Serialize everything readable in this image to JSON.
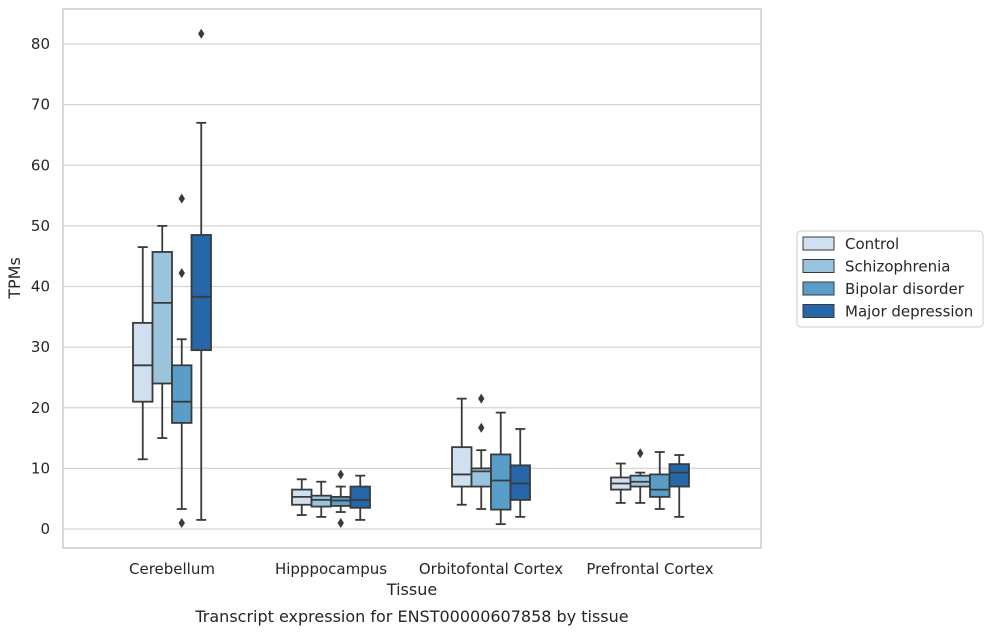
{
  "chart_data": {
    "type": "box",
    "title": "",
    "caption": "Transcript expression for ENST00000607858 by tissue",
    "xlabel": "Tissue",
    "ylabel": "TPMs",
    "ylim": [
      -3,
      86
    ],
    "yticks": [
      0,
      10,
      20,
      30,
      40,
      50,
      60,
      70,
      80
    ],
    "grid": true,
    "legend_position": "right",
    "categories": [
      "Cerebellum",
      "Hipppocampus",
      "Orbitofontal Cortex",
      "Prefrontal Cortex"
    ],
    "series": [
      {
        "name": "Control",
        "color": "#d0e0f0",
        "boxes": [
          {
            "q1": 21,
            "median": 27,
            "q3": 34,
            "whisker_low": 11.5,
            "whisker_high": 46.5,
            "outliers": []
          },
          {
            "q1": 4,
            "median": 5.3,
            "q3": 6.5,
            "whisker_low": 2.3,
            "whisker_high": 8.2,
            "outliers": []
          },
          {
            "q1": 7,
            "median": 9,
            "q3": 13.5,
            "whisker_low": 4,
            "whisker_high": 21.5,
            "outliers": []
          },
          {
            "q1": 6.5,
            "median": 7.5,
            "q3": 8.5,
            "whisker_low": 4.3,
            "whisker_high": 10.8,
            "outliers": []
          }
        ]
      },
      {
        "name": "Schizophrenia",
        "color": "#9ac4de",
        "boxes": [
          {
            "q1": 24,
            "median": 37.3,
            "q3": 45.7,
            "whisker_low": 15,
            "whisker_high": 50,
            "outliers": []
          },
          {
            "q1": 3.7,
            "median": 4.8,
            "q3": 5.5,
            "whisker_low": 2,
            "whisker_high": 7.8,
            "outliers": []
          },
          {
            "q1": 7,
            "median": 9.5,
            "q3": 10,
            "whisker_low": 3.3,
            "whisker_high": 13,
            "outliers": [
              16.7,
              21.5
            ]
          },
          {
            "q1": 7,
            "median": 7.8,
            "q3": 8.8,
            "whisker_low": 4.3,
            "whisker_high": 9.3,
            "outliers": [
              12.5
            ]
          }
        ]
      },
      {
        "name": "Bipolar disorder",
        "color": "#5a9dc9",
        "boxes": [
          {
            "q1": 17.5,
            "median": 21,
            "q3": 27,
            "whisker_low": 3.3,
            "whisker_high": 31.3,
            "outliers": [
              1,
              42.2,
              54.5
            ]
          },
          {
            "q1": 3.8,
            "median": 4.7,
            "q3": 5.3,
            "whisker_low": 2.8,
            "whisker_high": 7,
            "outliers": [
              1,
              9
            ]
          },
          {
            "q1": 3.2,
            "median": 8,
            "q3": 12.3,
            "whisker_low": 0.8,
            "whisker_high": 19.2,
            "outliers": []
          },
          {
            "q1": 5.3,
            "median": 6.5,
            "q3": 9,
            "whisker_low": 3.3,
            "whisker_high": 12.7,
            "outliers": []
          }
        ]
      },
      {
        "name": "Major depression",
        "color": "#2567a8",
        "boxes": [
          {
            "q1": 29.5,
            "median": 38.3,
            "q3": 48.5,
            "whisker_low": 1.5,
            "whisker_high": 67,
            "outliers": [
              81.7
            ]
          },
          {
            "q1": 3.5,
            "median": 4.8,
            "q3": 7,
            "whisker_low": 1.5,
            "whisker_high": 8.8,
            "outliers": []
          },
          {
            "q1": 4.8,
            "median": 7.5,
            "q3": 10.5,
            "whisker_low": 2,
            "whisker_high": 16.5,
            "outliers": []
          },
          {
            "q1": 7,
            "median": 9.3,
            "q3": 10.7,
            "whisker_low": 2,
            "whisker_high": 12.2,
            "outliers": []
          }
        ]
      }
    ]
  }
}
